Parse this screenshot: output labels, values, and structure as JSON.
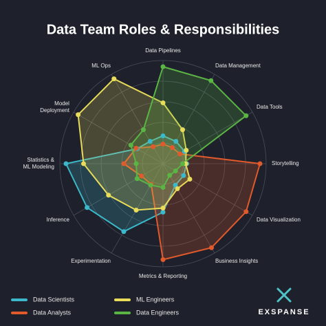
{
  "chart_data": {
    "type": "radar",
    "title": "Data Team Roles & Responsibilities",
    "categories": [
      "Data Pipelines",
      "Data Management",
      "Data Tools",
      "Storytelling",
      "Data Visualization",
      "Business Insights",
      "Metrics & Reporting",
      "Experimentation",
      "Inference",
      "Statistics &\nML Modeling",
      "Model\nDeployment",
      "ML Ops"
    ],
    "rlim": [
      0,
      10
    ],
    "rticks": [
      2,
      4,
      6,
      8,
      10
    ],
    "grid": true,
    "series": [
      {
        "name": "Data Scientists",
        "color": "#3bb8c9",
        "values": [
          2.7,
          2.5,
          2.4,
          2.3,
          2.3,
          2.4,
          4.7,
          7.6,
          8.5,
          9.4,
          2.9,
          2.5
        ]
      },
      {
        "name": "Data Analysts",
        "color": "#e05a2b",
        "values": [
          1.9,
          1.8,
          1.9,
          9.4,
          9.3,
          9.4,
          9.3,
          2.3,
          2.4,
          3.8,
          3.0,
          1.9
        ]
      },
      {
        "name": "ML Engineers",
        "color": "#e8dc5a",
        "values": [
          5.9,
          3.8,
          2.6,
          2.2,
          3.0,
          2.8,
          4.3,
          5.2,
          6.1,
          7.7,
          9.5,
          9.5
        ]
      },
      {
        "name": "Data Engineers",
        "color": "#5bb544",
        "values": [
          9.4,
          9.3,
          9.3,
          1.9,
          1.4,
          1.3,
          2.3,
          2.4,
          2.9,
          2.6,
          3.6,
          3.8
        ]
      }
    ]
  },
  "brand": "EXSPANSE"
}
